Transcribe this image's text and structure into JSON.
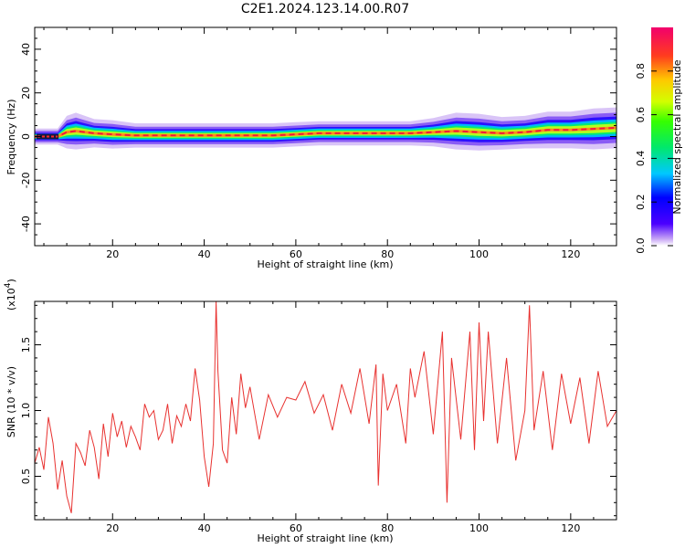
{
  "title": "C2E1.2024.123.14.00.R07",
  "chart_data": [
    {
      "type": "heatmap",
      "xlabel": "Height of straight line (km)",
      "ylabel": "Frequency (Hz)",
      "xlim": [
        3,
        130
      ],
      "ylim": [
        -50,
        50
      ],
      "xticks": [
        20,
        40,
        60,
        80,
        100,
        120
      ],
      "yticks": [
        -40,
        -20,
        0,
        20,
        40
      ],
      "colorbar": {
        "label": "Normalized spectral amplitude",
        "range": [
          0,
          1
        ],
        "ticks": [
          0.0,
          0.2,
          0.4,
          0.6,
          0.8
        ]
      },
      "peak_line": {
        "height_km": [
          3,
          8,
          10,
          12,
          16,
          20,
          25,
          30,
          40,
          50,
          55,
          60,
          65,
          70,
          75,
          80,
          85,
          90,
          95,
          100,
          105,
          110,
          115,
          120,
          125,
          130
        ],
        "frequency_hz": [
          0,
          0,
          2,
          2.5,
          1.5,
          1,
          0.5,
          0.5,
          0.5,
          0.5,
          0.5,
          1,
          1.5,
          1.5,
          1.5,
          1.5,
          1.5,
          2,
          2.5,
          2,
          1.5,
          2,
          3,
          3,
          3.5,
          4
        ],
        "half_width_hz": [
          1.5,
          1.5,
          3.5,
          4,
          3,
          3,
          2.5,
          2.5,
          2.5,
          2.5,
          2.5,
          2.5,
          2.5,
          2.5,
          2.5,
          2.5,
          2.5,
          3,
          4,
          4,
          3.5,
          3.5,
          4,
          4,
          4.5,
          4.5
        ]
      }
    },
    {
      "type": "line",
      "xlabel": "Height of straight line (km)",
      "ylabel": "SNR (10 * v/v)",
      "y_multiplier": "(x10",
      "y_multiplier_exp": "4",
      "xlim": [
        3,
        130
      ],
      "ylim": [
        0.17,
        1.83
      ],
      "xticks": [
        20,
        40,
        60,
        80,
        100,
        120
      ],
      "yticks": [
        0.5,
        1.0,
        1.5
      ],
      "ytick_labels": [
        "0.5",
        "1.0",
        "1.5"
      ],
      "series": [
        {
          "color": "#e8312f",
          "x": [
            3,
            4,
            5,
            6,
            7,
            8,
            9,
            10,
            11,
            12,
            13,
            14,
            15,
            16,
            17,
            18,
            19,
            20,
            21,
            22,
            23,
            24,
            25,
            26,
            27,
            28,
            29,
            30,
            31,
            32,
            33,
            34,
            35,
            36,
            37,
            38,
            39,
            40,
            41,
            42,
            42.6,
            43,
            44,
            45,
            46,
            47,
            48,
            49,
            50,
            52,
            54,
            56,
            58,
            60,
            62,
            64,
            65,
            66,
            68,
            70,
            72,
            74,
            76,
            77.5,
            78,
            79,
            80,
            82,
            84,
            85,
            86,
            88,
            90,
            92,
            93,
            94,
            96,
            98,
            99,
            100,
            101,
            102,
            104,
            106,
            108,
            110,
            111,
            112,
            114,
            116,
            118,
            120,
            122,
            124,
            126,
            128,
            130
          ],
          "y": [
            0.6,
            0.72,
            0.55,
            0.95,
            0.75,
            0.4,
            0.62,
            0.35,
            0.22,
            0.75,
            0.68,
            0.58,
            0.85,
            0.72,
            0.48,
            0.9,
            0.65,
            0.98,
            0.8,
            0.92,
            0.72,
            0.88,
            0.8,
            0.7,
            1.05,
            0.95,
            1.0,
            0.78,
            0.85,
            1.05,
            0.75,
            0.96,
            0.88,
            1.05,
            0.92,
            1.32,
            1.08,
            0.65,
            0.42,
            0.75,
            1.83,
            1.3,
            0.7,
            0.6,
            1.1,
            0.82,
            1.28,
            1.02,
            1.18,
            0.78,
            1.12,
            0.95,
            1.1,
            1.08,
            1.22,
            0.98,
            1.05,
            1.12,
            0.85,
            1.2,
            0.98,
            1.32,
            0.9,
            1.35,
            0.43,
            1.28,
            1.0,
            1.2,
            0.75,
            1.32,
            1.1,
            1.45,
            0.82,
            1.6,
            0.3,
            1.4,
            0.78,
            1.6,
            0.7,
            1.67,
            0.92,
            1.6,
            0.75,
            1.4,
            0.62,
            1.0,
            1.8,
            0.85,
            1.3,
            0.7,
            1.28,
            0.9,
            1.25,
            0.75,
            1.3,
            0.88,
            1.0
          ]
        }
      ]
    }
  ]
}
